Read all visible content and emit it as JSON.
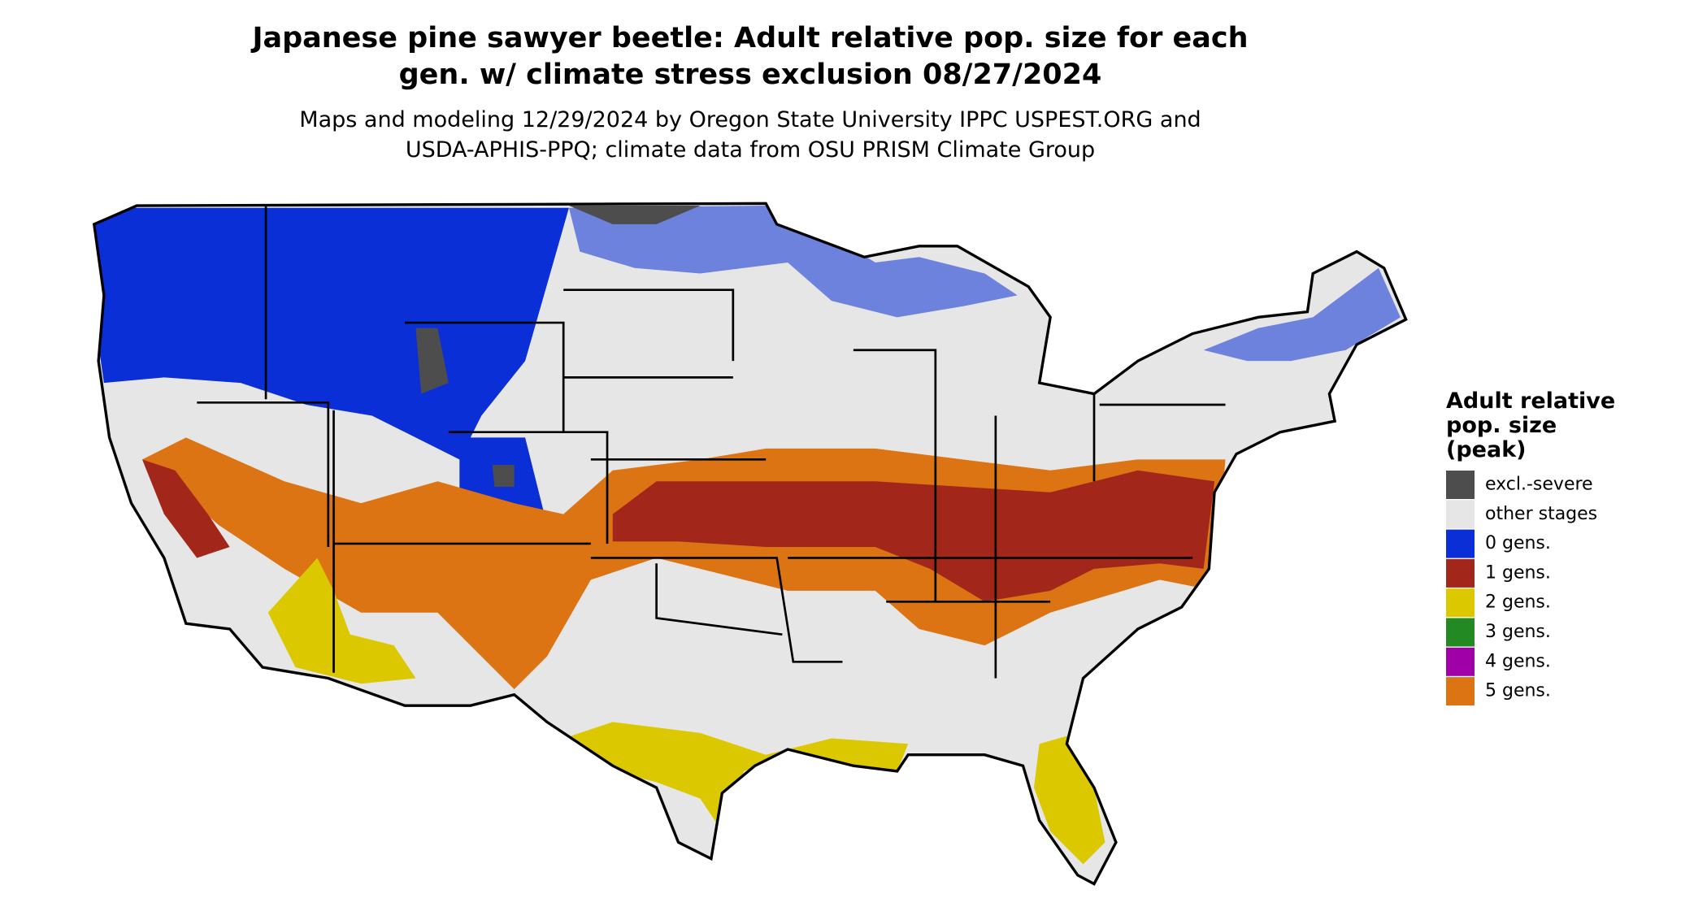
{
  "title": [
    "Japanese pine sawyer beetle: Adult relative pop. size for each",
    "gen. w/ climate stress exclusion 08/27/2024"
  ],
  "subtitle": [
    "Maps and modeling 12/29/2024 by Oregon State University IPPC USPEST.ORG and",
    "USDA-APHIS-PPQ; climate data from OSU PRISM Climate Group"
  ],
  "legend": {
    "title": [
      "Adult relative",
      "pop. size",
      "(peak)"
    ],
    "items": [
      {
        "label": "excl.-severe",
        "color": "#4d4d4d"
      },
      {
        "label": "other stages",
        "color": "#e6e6e6"
      },
      {
        "label": "0 gens.",
        "color": "#0a2fd6"
      },
      {
        "label": "1 gens.",
        "color": "#a3261a"
      },
      {
        "label": "2 gens.",
        "color": "#dcc800"
      },
      {
        "label": "3 gens.",
        "color": "#238a23"
      },
      {
        "label": "4 gens.",
        "color": "#a000a8"
      },
      {
        "label": "5 gens.",
        "color": "#dc7414"
      }
    ]
  }
}
